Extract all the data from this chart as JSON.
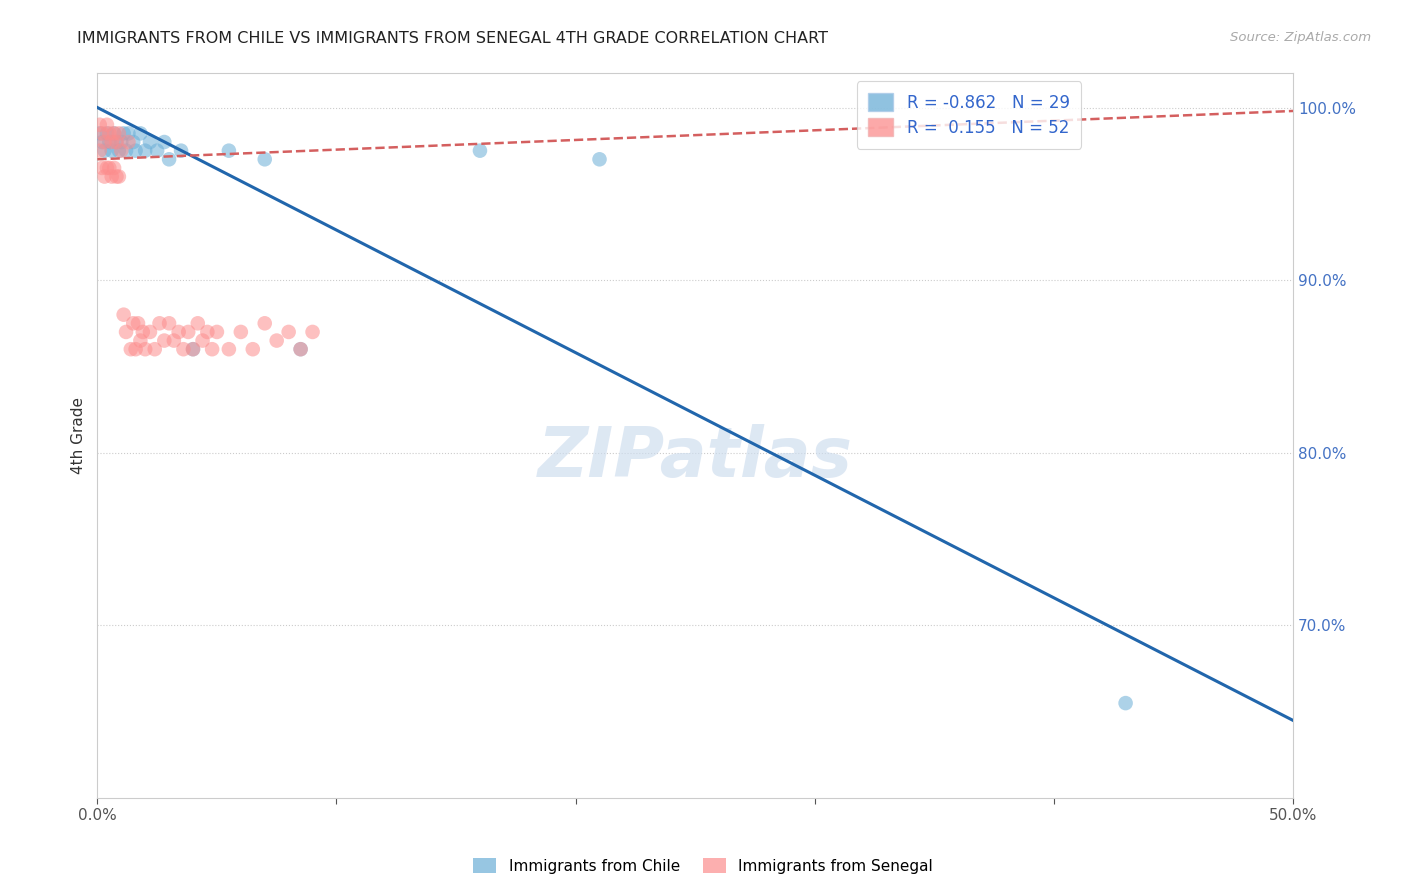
{
  "title": "IMMIGRANTS FROM CHILE VS IMMIGRANTS FROM SENEGAL 4TH GRADE CORRELATION CHART",
  "source": "Source: ZipAtlas.com",
  "ylabel": "4th Grade",
  "xlim": [
    0.0,
    0.5
  ],
  "ylim": [
    0.6,
    1.02
  ],
  "xticks": [
    0.0,
    0.1,
    0.2,
    0.3,
    0.4,
    0.5
  ],
  "xtick_labels": [
    "0.0%",
    "",
    "",
    "",
    "",
    "50.0%"
  ],
  "ytick_labels_right": [
    "100.0%",
    "90.0%",
    "80.0%",
    "70.0%"
  ],
  "ytick_positions_right": [
    1.0,
    0.9,
    0.8,
    0.7
  ],
  "legend_r_chile": "-0.862",
  "legend_n_chile": "29",
  "legend_r_senegal": "0.155",
  "legend_n_senegal": "52",
  "chile_color": "#6baed6",
  "senegal_color": "#fc8d8d",
  "chile_scatter_x": [
    0.001,
    0.002,
    0.003,
    0.004,
    0.005,
    0.006,
    0.007,
    0.008,
    0.009,
    0.01,
    0.011,
    0.012,
    0.013,
    0.015,
    0.016,
    0.018,
    0.02,
    0.022,
    0.025,
    0.028,
    0.03,
    0.035,
    0.04,
    0.055,
    0.07,
    0.085,
    0.16,
    0.21,
    0.43
  ],
  "chile_scatter_y": [
    0.985,
    0.98,
    0.975,
    0.985,
    0.98,
    0.975,
    0.985,
    0.98,
    0.975,
    0.98,
    0.985,
    0.975,
    0.985,
    0.98,
    0.975,
    0.985,
    0.975,
    0.98,
    0.975,
    0.98,
    0.97,
    0.975,
    0.86,
    0.975,
    0.97,
    0.86,
    0.975,
    0.97,
    0.655
  ],
  "senegal_scatter_x": [
    0.001,
    0.001,
    0.002,
    0.002,
    0.003,
    0.003,
    0.004,
    0.004,
    0.005,
    0.005,
    0.006,
    0.006,
    0.007,
    0.007,
    0.008,
    0.008,
    0.009,
    0.009,
    0.01,
    0.011,
    0.012,
    0.013,
    0.014,
    0.015,
    0.016,
    0.017,
    0.018,
    0.019,
    0.02,
    0.022,
    0.024,
    0.026,
    0.028,
    0.03,
    0.032,
    0.034,
    0.036,
    0.038,
    0.04,
    0.042,
    0.044,
    0.046,
    0.048,
    0.05,
    0.055,
    0.06,
    0.065,
    0.07,
    0.075,
    0.08,
    0.085,
    0.09
  ],
  "senegal_scatter_y": [
    0.99,
    0.975,
    0.985,
    0.965,
    0.98,
    0.96,
    0.99,
    0.965,
    0.985,
    0.965,
    0.98,
    0.96,
    0.985,
    0.965,
    0.98,
    0.96,
    0.985,
    0.96,
    0.975,
    0.88,
    0.87,
    0.98,
    0.86,
    0.875,
    0.86,
    0.875,
    0.865,
    0.87,
    0.86,
    0.87,
    0.86,
    0.875,
    0.865,
    0.875,
    0.865,
    0.87,
    0.86,
    0.87,
    0.86,
    0.875,
    0.865,
    0.87,
    0.86,
    0.87,
    0.86,
    0.87,
    0.86,
    0.875,
    0.865,
    0.87,
    0.86,
    0.87
  ],
  "chile_trendline_x": [
    0.0,
    0.5
  ],
  "chile_trendline_y": [
    1.0,
    0.645
  ],
  "senegal_trendline_x": [
    0.0,
    0.5
  ],
  "senegal_trendline_y": [
    0.97,
    0.998
  ],
  "watermark": "ZIPatlas",
  "background_color": "#ffffff",
  "grid_color": "#cccccc"
}
